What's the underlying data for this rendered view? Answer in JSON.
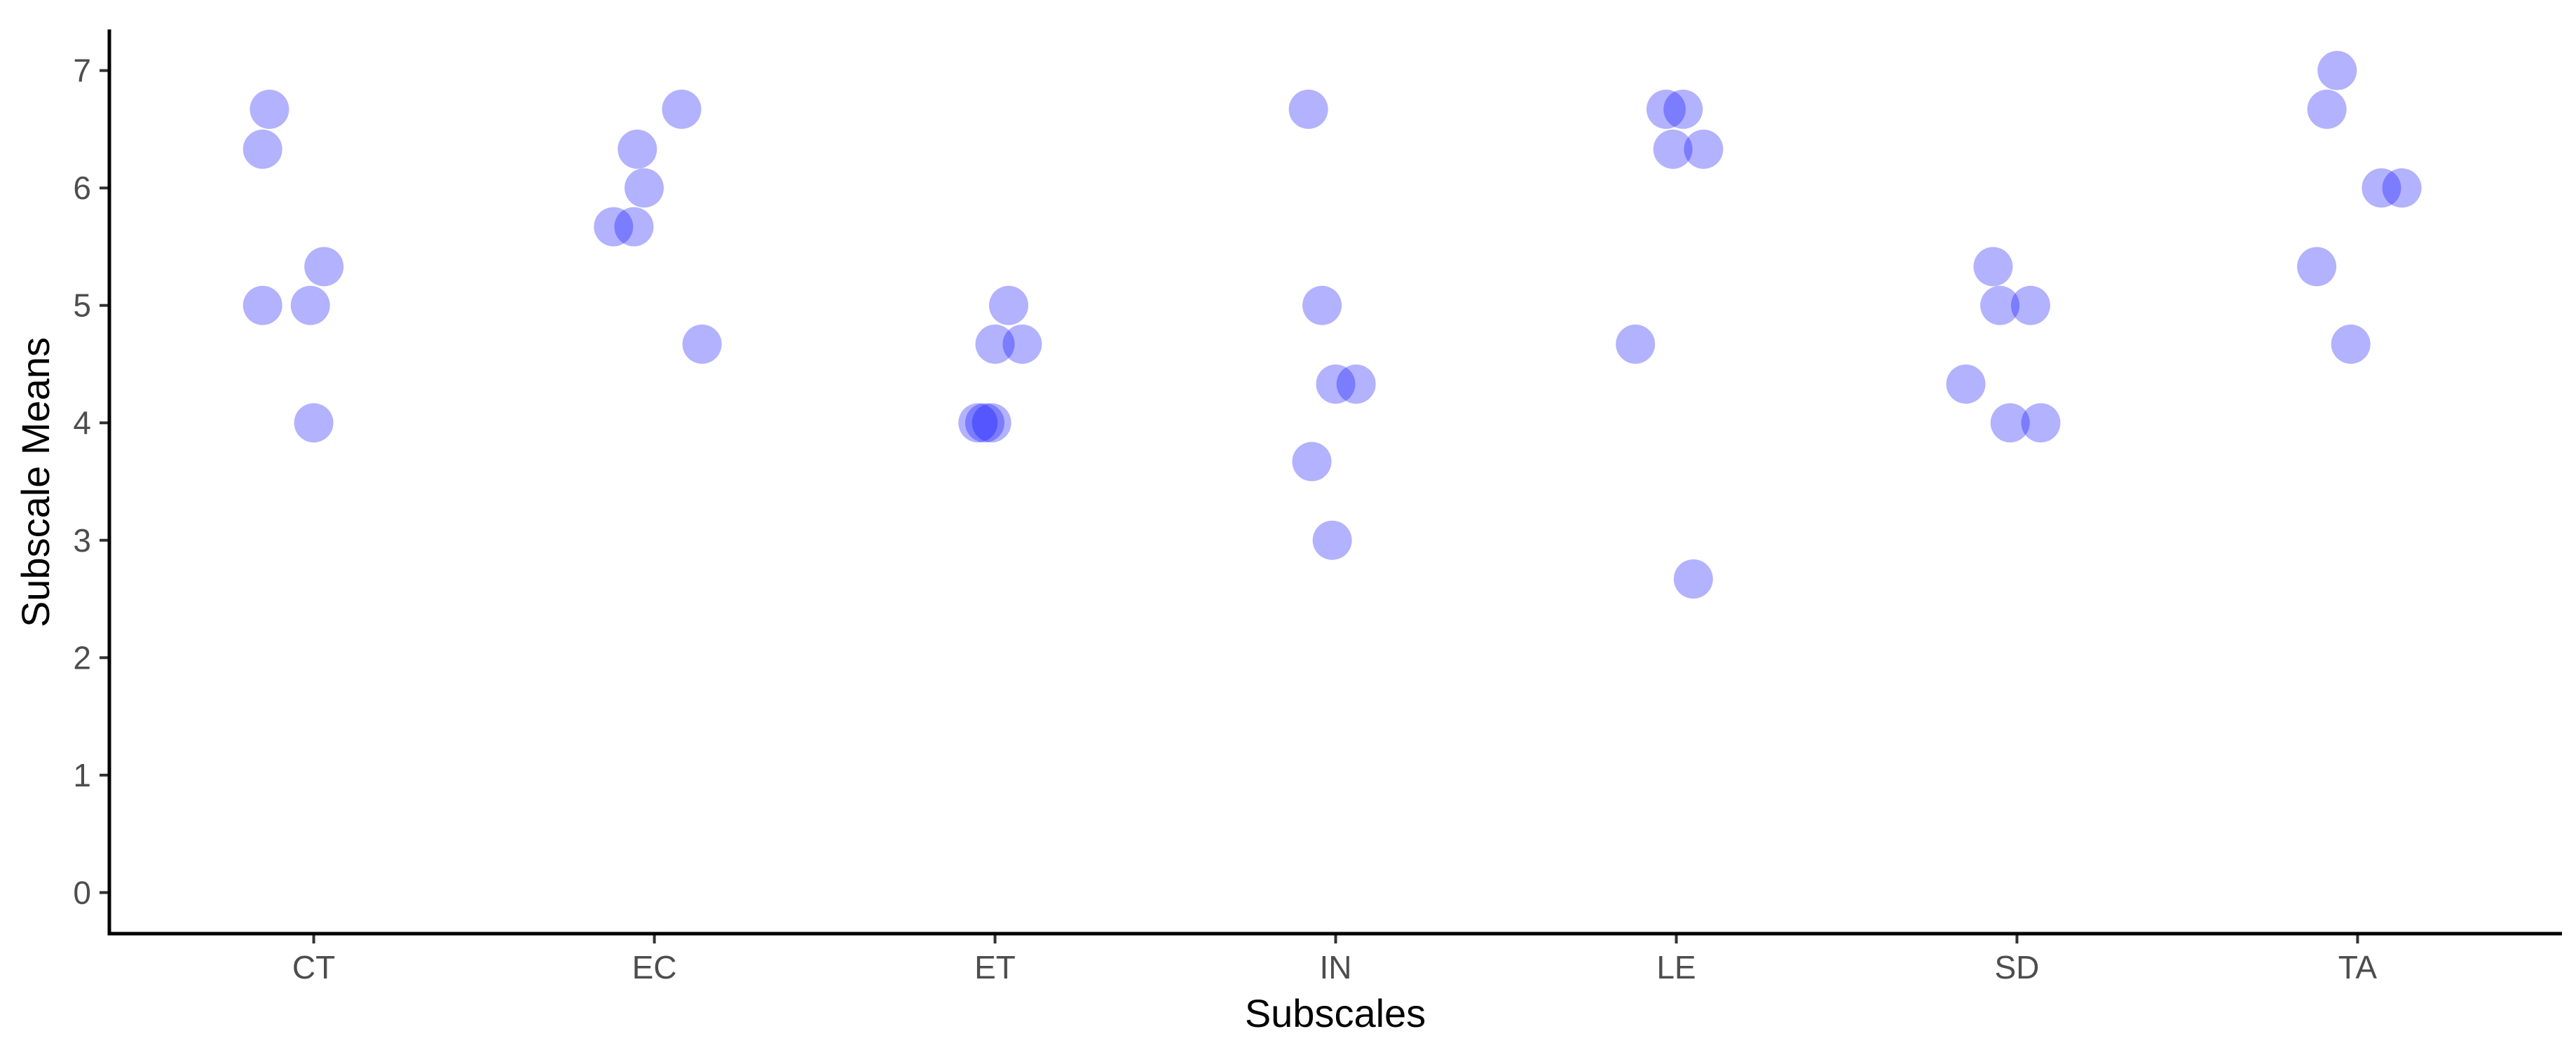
{
  "chart_data": {
    "type": "scatter",
    "title": "",
    "xlabel": "Subscales",
    "ylabel": "Subscale Means",
    "categories": [
      "CT",
      "EC",
      "ET",
      "IN",
      "LE",
      "SD",
      "TA"
    ],
    "yticks": [
      "0",
      "1",
      "2",
      "3",
      "4",
      "5",
      "6",
      "7"
    ],
    "ylim": [
      -0.35,
      7.35
    ],
    "grid": false,
    "legend": "none",
    "point_color": "#0000ff",
    "point_alpha": 0.3,
    "points": [
      {
        "category": "CT",
        "jitter": -0.13,
        "y": 6.67
      },
      {
        "category": "CT",
        "jitter": -0.15,
        "y": 6.33
      },
      {
        "category": "CT",
        "jitter": 0.03,
        "y": 5.33
      },
      {
        "category": "CT",
        "jitter": -0.15,
        "y": 5.0
      },
      {
        "category": "CT",
        "jitter": -0.01,
        "y": 5.0
      },
      {
        "category": "CT",
        "jitter": 0.0,
        "y": 4.0
      },
      {
        "category": "EC",
        "jitter": 0.08,
        "y": 6.67
      },
      {
        "category": "EC",
        "jitter": -0.05,
        "y": 6.33
      },
      {
        "category": "EC",
        "jitter": -0.03,
        "y": 6.0
      },
      {
        "category": "EC",
        "jitter": -0.12,
        "y": 5.67
      },
      {
        "category": "EC",
        "jitter": -0.06,
        "y": 5.67
      },
      {
        "category": "EC",
        "jitter": 0.14,
        "y": 4.67
      },
      {
        "category": "ET",
        "jitter": 0.04,
        "y": 5.0
      },
      {
        "category": "ET",
        "jitter": 0.0,
        "y": 4.67
      },
      {
        "category": "ET",
        "jitter": 0.08,
        "y": 4.67
      },
      {
        "category": "ET",
        "jitter": -0.05,
        "y": 4.0
      },
      {
        "category": "ET",
        "jitter": -0.03,
        "y": 4.0
      },
      {
        "category": "ET",
        "jitter": -0.01,
        "y": 4.0
      },
      {
        "category": "IN",
        "jitter": -0.08,
        "y": 6.67
      },
      {
        "category": "IN",
        "jitter": -0.04,
        "y": 5.0
      },
      {
        "category": "IN",
        "jitter": 0.0,
        "y": 4.33
      },
      {
        "category": "IN",
        "jitter": 0.06,
        "y": 4.33
      },
      {
        "category": "IN",
        "jitter": -0.07,
        "y": 3.67
      },
      {
        "category": "IN",
        "jitter": -0.01,
        "y": 3.0
      },
      {
        "category": "LE",
        "jitter": -0.03,
        "y": 6.67
      },
      {
        "category": "LE",
        "jitter": 0.02,
        "y": 6.67
      },
      {
        "category": "LE",
        "jitter": -0.01,
        "y": 6.33
      },
      {
        "category": "LE",
        "jitter": 0.08,
        "y": 6.33
      },
      {
        "category": "LE",
        "jitter": -0.12,
        "y": 4.67
      },
      {
        "category": "LE",
        "jitter": 0.05,
        "y": 2.67
      },
      {
        "category": "SD",
        "jitter": -0.07,
        "y": 5.33
      },
      {
        "category": "SD",
        "jitter": -0.05,
        "y": 5.0
      },
      {
        "category": "SD",
        "jitter": 0.04,
        "y": 5.0
      },
      {
        "category": "SD",
        "jitter": -0.15,
        "y": 4.33
      },
      {
        "category": "SD",
        "jitter": -0.02,
        "y": 4.0
      },
      {
        "category": "SD",
        "jitter": 0.07,
        "y": 4.0
      },
      {
        "category": "TA",
        "jitter": -0.06,
        "y": 7.0
      },
      {
        "category": "TA",
        "jitter": -0.09,
        "y": 6.67
      },
      {
        "category": "TA",
        "jitter": 0.07,
        "y": 6.0
      },
      {
        "category": "TA",
        "jitter": 0.13,
        "y": 6.0
      },
      {
        "category": "TA",
        "jitter": -0.12,
        "y": 5.33
      },
      {
        "category": "TA",
        "jitter": -0.02,
        "y": 4.67
      }
    ]
  }
}
